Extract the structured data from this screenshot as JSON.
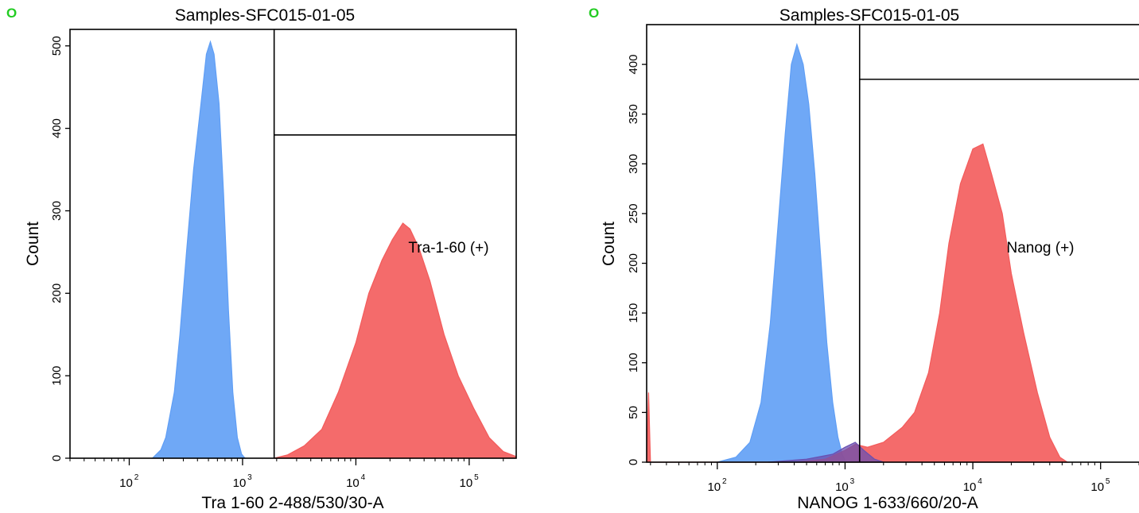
{
  "chart_data": [
    {
      "type": "histogram",
      "title": "Samples-SFC015-01-05",
      "corner_marker": "O",
      "xlabel": "Tra 1-60 2-488/530/30-A",
      "ylabel": "Count",
      "x_scale": "log",
      "xlim": [
        30,
        260000
      ],
      "ylim": [
        0,
        520
      ],
      "x_ticks": [
        100,
        1000,
        10000,
        100000
      ],
      "x_tick_labels": [
        "10",
        "10",
        "10",
        "10"
      ],
      "x_tick_exponents": [
        "2",
        "3",
        "4",
        "5"
      ],
      "y_ticks": [
        0,
        100,
        200,
        300,
        400,
        500
      ],
      "y_tick_labels": [
        "0",
        "100",
        "200",
        "300",
        "400",
        "500"
      ],
      "gate": {
        "label": "Tra-1-60 (+)",
        "x_start": 1900,
        "x_end": 260000,
        "y_level": 392
      },
      "series": [
        {
          "color": "#5f9ef5",
          "points": [
            [
              160,
              0
            ],
            [
              190,
              10
            ],
            [
              210,
              25
            ],
            [
              250,
              80
            ],
            [
              280,
              150
            ],
            [
              320,
              250
            ],
            [
              370,
              350
            ],
            [
              430,
              430
            ],
            [
              480,
              490
            ],
            [
              520,
              505
            ],
            [
              560,
              490
            ],
            [
              620,
              430
            ],
            [
              680,
              320
            ],
            [
              750,
              180
            ],
            [
              820,
              80
            ],
            [
              900,
              25
            ],
            [
              980,
              5
            ],
            [
              1050,
              0
            ]
          ]
        },
        {
          "color": "#f35b5b",
          "points": [
            [
              1900,
              0
            ],
            [
              2500,
              4
            ],
            [
              3500,
              15
            ],
            [
              5000,
              35
            ],
            [
              7000,
              80
            ],
            [
              10000,
              140
            ],
            [
              13000,
              200
            ],
            [
              17000,
              240
            ],
            [
              21000,
              265
            ],
            [
              26000,
              285
            ],
            [
              30000,
              278
            ],
            [
              36000,
              255
            ],
            [
              45000,
              215
            ],
            [
              60000,
              150
            ],
            [
              80000,
              100
            ],
            [
              110000,
              60
            ],
            [
              150000,
              25
            ],
            [
              200000,
              8
            ],
            [
              260000,
              2
            ]
          ]
        }
      ]
    },
    {
      "type": "histogram",
      "title": "Samples-SFC015-01-05",
      "corner_marker": "O",
      "xlabel": "NANOG 1-633/660/20-A",
      "ylabel": "Count",
      "x_scale": "log",
      "xlim": [
        28,
        270000
      ],
      "ylim": [
        0,
        440
      ],
      "x_ticks": [
        100,
        1000,
        10000,
        100000
      ],
      "x_tick_labels": [
        "10",
        "10",
        "10",
        "10"
      ],
      "x_tick_exponents": [
        "2",
        "3",
        "4",
        "5"
      ],
      "y_ticks": [
        0,
        50,
        100,
        150,
        200,
        250,
        300,
        350,
        400
      ],
      "y_tick_labels": [
        "0",
        "50",
        "100",
        "150",
        "200",
        "250",
        "300",
        "350",
        "400"
      ],
      "gate": {
        "label": "Nanog (+)",
        "x_start": 1300,
        "x_end": 270000,
        "y_level": 385
      },
      "series": [
        {
          "color": "#5f9ef5",
          "points": [
            [
              100,
              0
            ],
            [
              140,
              5
            ],
            [
              180,
              20
            ],
            [
              220,
              60
            ],
            [
              260,
              140
            ],
            [
              300,
              240
            ],
            [
              340,
              330
            ],
            [
              380,
              400
            ],
            [
              420,
              420
            ],
            [
              470,
              400
            ],
            [
              520,
              360
            ],
            [
              580,
              290
            ],
            [
              650,
              200
            ],
            [
              720,
              120
            ],
            [
              800,
              60
            ],
            [
              880,
              25
            ],
            [
              950,
              8
            ],
            [
              1000,
              2
            ]
          ]
        },
        {
          "color": "#f35b5b",
          "points": [
            [
              28,
              0
            ],
            [
              29,
              70
            ],
            [
              30,
              0
            ],
            [
              400,
              0
            ],
            [
              700,
              3
            ],
            [
              1000,
              12
            ],
            [
              1200,
              18
            ],
            [
              1500,
              15
            ],
            [
              2000,
              20
            ],
            [
              2800,
              35
            ],
            [
              3500,
              50
            ],
            [
              4500,
              90
            ],
            [
              5500,
              150
            ],
            [
              6500,
              220
            ],
            [
              8000,
              280
            ],
            [
              10000,
              315
            ],
            [
              12000,
              320
            ],
            [
              14000,
              290
            ],
            [
              17000,
              250
            ],
            [
              20000,
              190
            ],
            [
              25000,
              130
            ],
            [
              32000,
              70
            ],
            [
              40000,
              25
            ],
            [
              48000,
              5
            ],
            [
              55000,
              0
            ]
          ]
        },
        {
          "color": "#6a4fb0",
          "points": [
            [
              250,
              0
            ],
            [
              500,
              3
            ],
            [
              800,
              8
            ],
            [
              1000,
              15
            ],
            [
              1200,
              20
            ],
            [
              1400,
              12
            ],
            [
              1700,
              3
            ],
            [
              2000,
              0
            ]
          ]
        }
      ]
    }
  ]
}
